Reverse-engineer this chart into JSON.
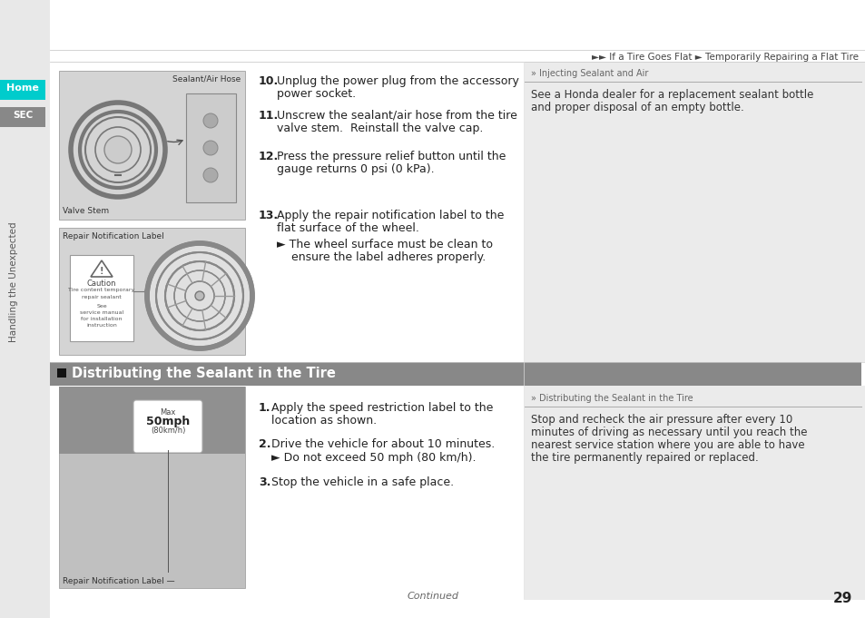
{
  "page_bg": "#f2f2f2",
  "white_bg": "#ffffff",
  "header_line_color": "#999999",
  "header_text": "►► If a Tire Goes Flat ► Temporarily Repairing a Flat Tire",
  "header_text_color": "#444444",
  "left_tab_home_bg": "#00cccc",
  "left_tab_home_text": "Home",
  "left_tab_sec_bg": "#888888",
  "left_tab_sec_text": "SEC",
  "left_sidebar_text": "Handling the Unexpected",
  "left_sidebar_text_color": "#555555",
  "section_header_bg": "#888888",
  "section_header_text": "Distributing the Sealant in the Tire",
  "section_header_text_color": "#ffffff",
  "image_bg": "#d4d4d4",
  "image_border": "#aaaaaa",
  "image1_label_top": "Sealant/Air Hose",
  "image1_label_bottom": "Valve Stem",
  "image2_label_top": "Repair Notification Label",
  "image3_label_bottom": "Repair Notification Label",
  "step10_num": "10.",
  "step10_body": "Unplug the power plug from the accessory\npower socket.",
  "step11_num": "11.",
  "step11_body": "Unscrew the sealant/air hose from the tire\nvalve stem.  Reinstall the valve cap.",
  "step12_num": "12.",
  "step12_body": "Press the pressure relief button until the\ngauge returns 0 psi (0 kPa).",
  "step13_num": "13.",
  "step13_body": "Apply the repair notification label to the\nflat surface of the wheel.",
  "step13_sub": "► The wheel surface must be clean to\n    ensure the label adheres properly.",
  "step1_body": "1. Apply the speed restriction label to the\n    location as shown.",
  "step2_body": "2. Drive the vehicle for about 10 minutes.",
  "step2_sub": "► Do not exceed 50 mph (80 km/h).",
  "step3_body": "3. Stop the vehicle in a safe place.",
  "right_box1_header": "» Injecting Sealant and Air",
  "right_box1_body": "See a Honda dealer for a replacement sealant bottle\nand proper disposal of an empty bottle.",
  "right_box2_header": "» Distributing the Sealant in the Tire",
  "right_box2_body": "Stop and recheck the air pressure after every 10\nminutes of driving as necessary until you reach the\nnearest service station where you are able to have\nthe tire permanently repaired or replaced.",
  "page_number": "29",
  "continued_text": "Continued",
  "divider_color": "#bbbbbb",
  "text_color_dark": "#222222",
  "text_color_medium": "#666666",
  "right_box_header_color": "#555555",
  "right_box_bg": "#ebebeb",
  "sidebar_bg": "#e8e8e8"
}
